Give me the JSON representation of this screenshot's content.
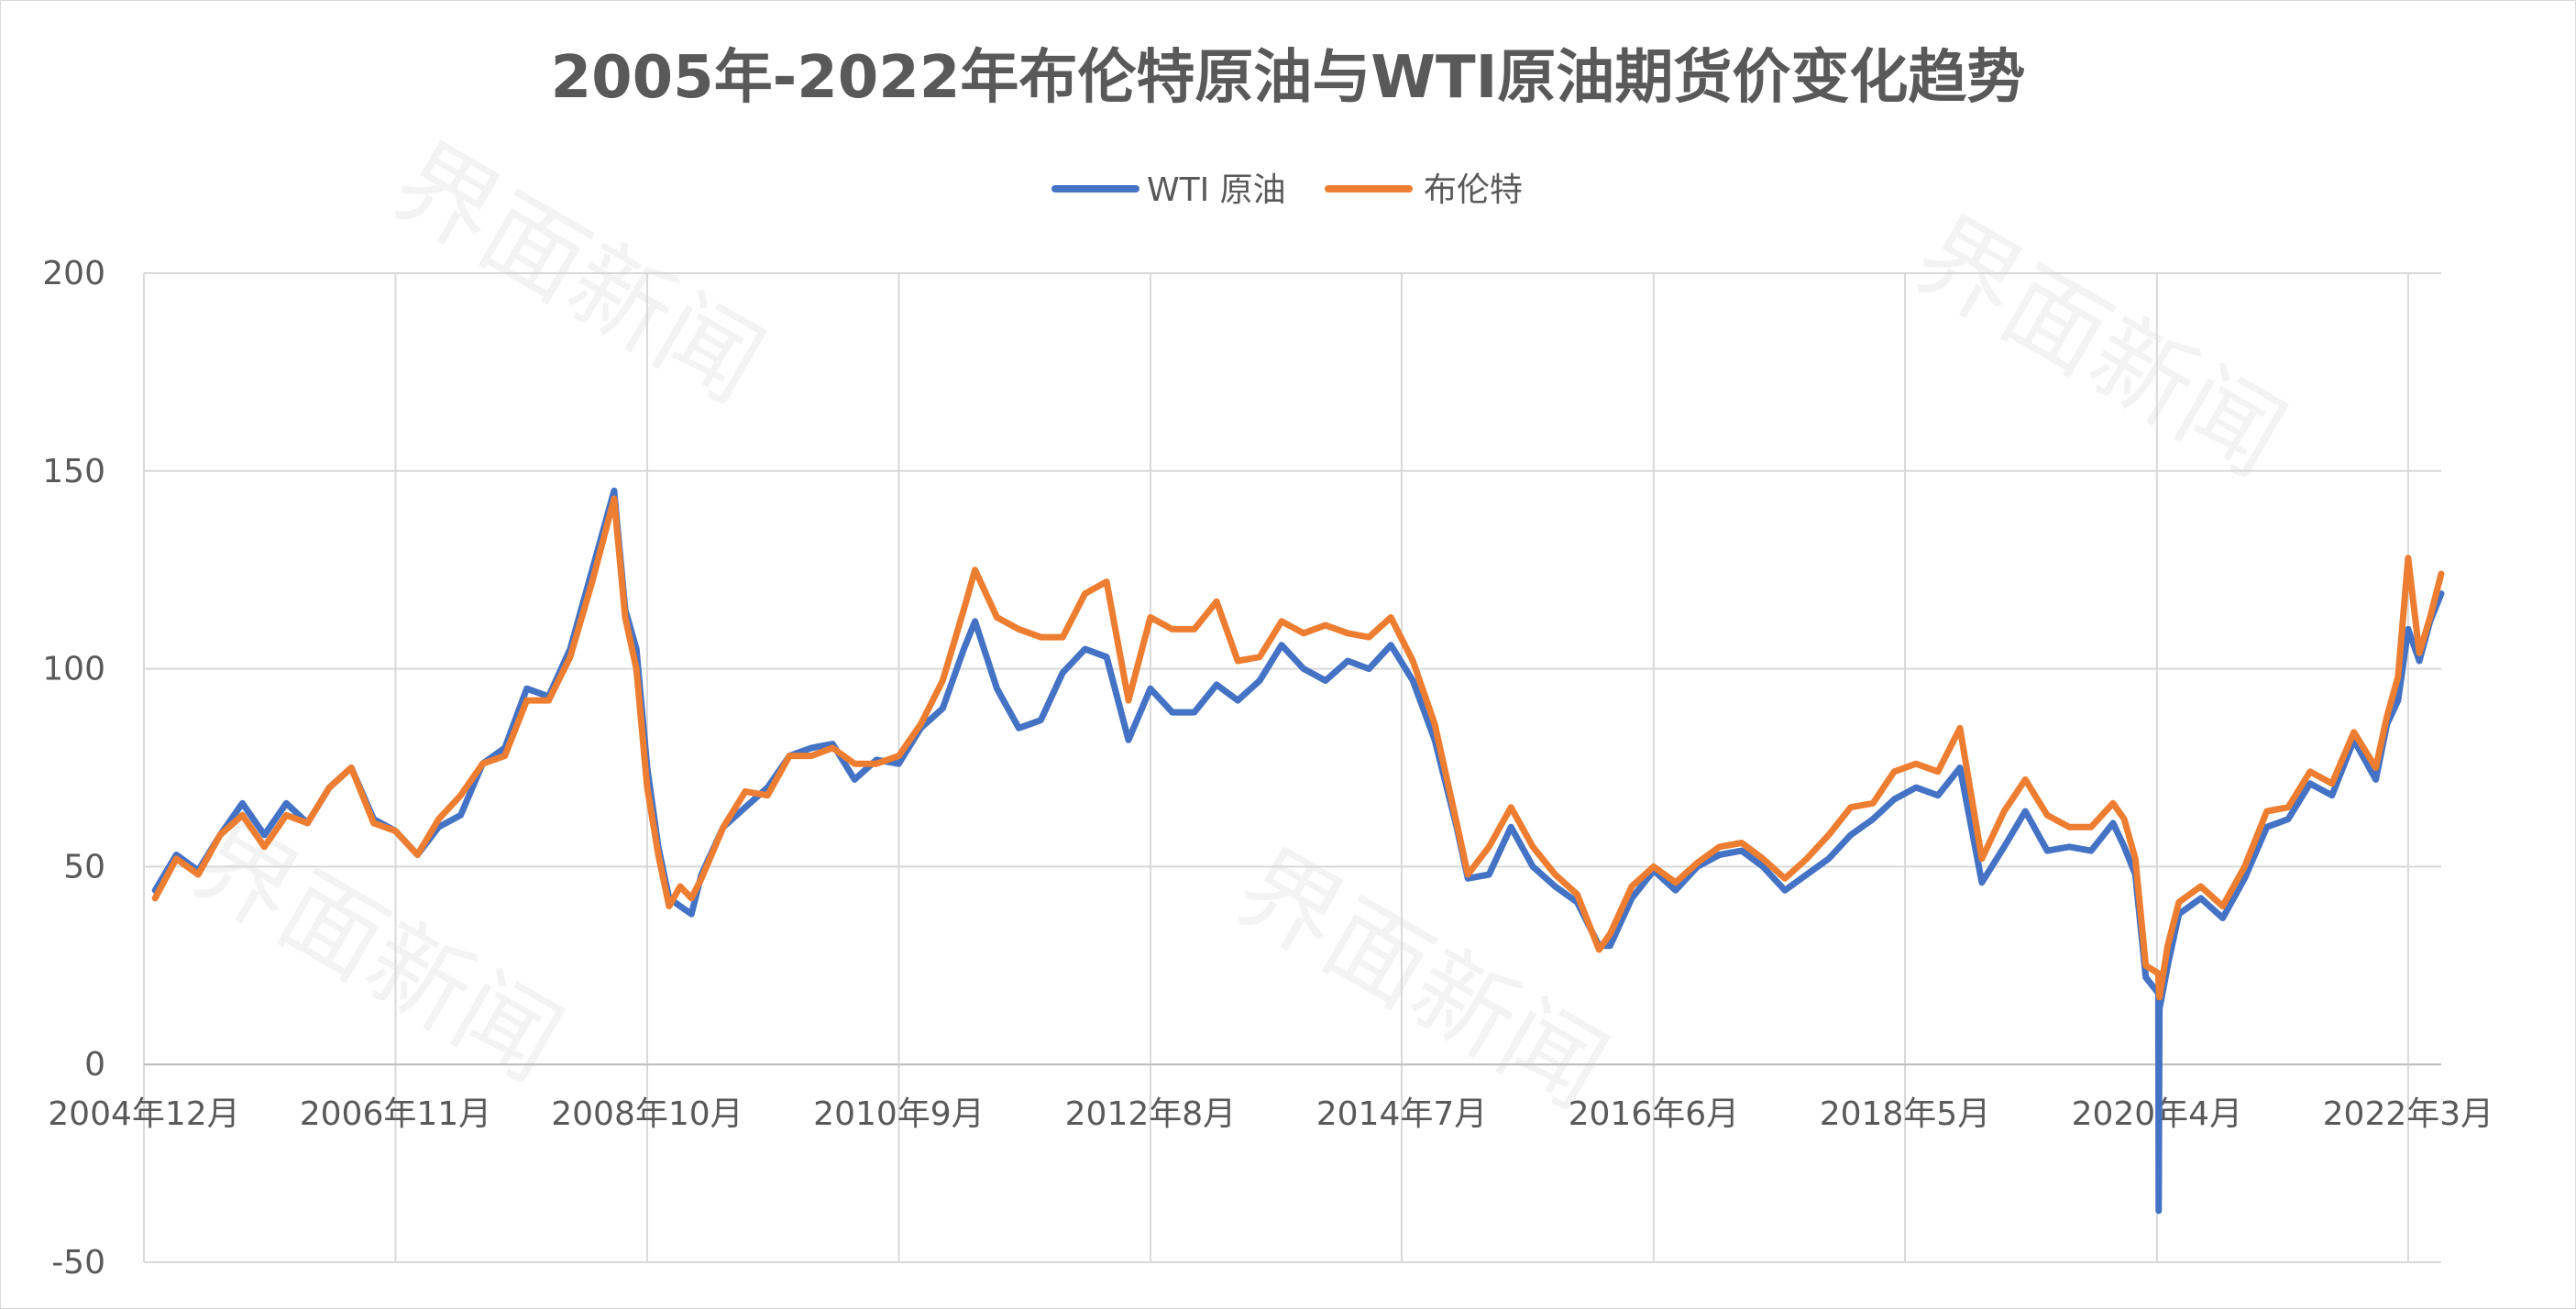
{
  "chart_data": {
    "type": "line",
    "title": "2005年-2022年布伦特原油与WTI原油期货价变化趋势",
    "xlabel": "",
    "ylabel": "",
    "x_range": [
      "2004-12",
      "2022-06"
    ],
    "ylim": [
      -50,
      200
    ],
    "y_ticks": [
      -50,
      0,
      50,
      100,
      150,
      200
    ],
    "x_ticks": [
      {
        "date": "2004-12",
        "label": "2004年12月"
      },
      {
        "date": "2006-11",
        "label": "2006年11月"
      },
      {
        "date": "2008-10",
        "label": "2008年10月"
      },
      {
        "date": "2010-09",
        "label": "2010年9月"
      },
      {
        "date": "2012-08",
        "label": "2012年8月"
      },
      {
        "date": "2014-07",
        "label": "2014年7月"
      },
      {
        "date": "2016-06",
        "label": "2016年6月"
      },
      {
        "date": "2018-05",
        "label": "2018年5月"
      },
      {
        "date": "2020-04",
        "label": "2020年4月"
      },
      {
        "date": "2022-03",
        "label": "2022年3月"
      }
    ],
    "grid": true,
    "legend_position": "top-center",
    "series": [
      {
        "name": "WTI 原油",
        "color": "#4472C4",
        "points": [
          [
            "2005-01",
            44
          ],
          [
            "2005-03",
            53
          ],
          [
            "2005-05",
            49
          ],
          [
            "2005-07",
            58
          ],
          [
            "2005-09",
            66
          ],
          [
            "2005-11",
            58
          ],
          [
            "2006-01",
            66
          ],
          [
            "2006-03",
            61
          ],
          [
            "2006-05",
            70
          ],
          [
            "2006-07",
            75
          ],
          [
            "2006-09",
            62
          ],
          [
            "2006-11",
            59
          ],
          [
            "2007-01",
            53
          ],
          [
            "2007-03",
            60
          ],
          [
            "2007-05",
            63
          ],
          [
            "2007-07",
            76
          ],
          [
            "2007-09",
            80
          ],
          [
            "2007-11",
            95
          ],
          [
            "2008-01",
            93
          ],
          [
            "2008-03",
            105
          ],
          [
            "2008-05",
            125
          ],
          [
            "2008-07",
            145
          ],
          [
            "2008-08",
            115
          ],
          [
            "2008-09",
            105
          ],
          [
            "2008-10",
            75
          ],
          [
            "2008-11",
            55
          ],
          [
            "2008-12",
            42
          ],
          [
            "2009-01",
            40
          ],
          [
            "2009-02",
            38
          ],
          [
            "2009-03",
            48
          ],
          [
            "2009-05",
            60
          ],
          [
            "2009-07",
            65
          ],
          [
            "2009-09",
            70
          ],
          [
            "2009-11",
            78
          ],
          [
            "2010-01",
            80
          ],
          [
            "2010-03",
            81
          ],
          [
            "2010-05",
            72
          ],
          [
            "2010-07",
            77
          ],
          [
            "2010-09",
            76
          ],
          [
            "2010-11",
            85
          ],
          [
            "2011-01",
            90
          ],
          [
            "2011-03",
            105
          ],
          [
            "2011-04",
            112
          ],
          [
            "2011-06",
            95
          ],
          [
            "2011-08",
            85
          ],
          [
            "2011-10",
            87
          ],
          [
            "2011-12",
            99
          ],
          [
            "2012-02",
            105
          ],
          [
            "2012-04",
            103
          ],
          [
            "2012-06",
            82
          ],
          [
            "2012-08",
            95
          ],
          [
            "2012-10",
            89
          ],
          [
            "2012-12",
            89
          ],
          [
            "2013-02",
            96
          ],
          [
            "2013-04",
            92
          ],
          [
            "2013-06",
            97
          ],
          [
            "2013-08",
            106
          ],
          [
            "2013-10",
            100
          ],
          [
            "2013-12",
            97
          ],
          [
            "2014-02",
            102
          ],
          [
            "2014-04",
            100
          ],
          [
            "2014-06",
            106
          ],
          [
            "2014-08",
            97
          ],
          [
            "2014-10",
            82
          ],
          [
            "2014-12",
            60
          ],
          [
            "2015-01",
            47
          ],
          [
            "2015-03",
            48
          ],
          [
            "2015-05",
            60
          ],
          [
            "2015-07",
            50
          ],
          [
            "2015-09",
            45
          ],
          [
            "2015-11",
            41
          ],
          [
            "2016-01",
            30
          ],
          [
            "2016-02",
            30
          ],
          [
            "2016-04",
            42
          ],
          [
            "2016-06",
            49
          ],
          [
            "2016-08",
            44
          ],
          [
            "2016-10",
            50
          ],
          [
            "2016-12",
            53
          ],
          [
            "2017-02",
            54
          ],
          [
            "2017-04",
            50
          ],
          [
            "2017-06",
            44
          ],
          [
            "2017-08",
            48
          ],
          [
            "2017-10",
            52
          ],
          [
            "2017-12",
            58
          ],
          [
            "2018-02",
            62
          ],
          [
            "2018-04",
            67
          ],
          [
            "2018-06",
            70
          ],
          [
            "2018-08",
            68
          ],
          [
            "2018-10",
            75
          ],
          [
            "2018-12",
            46
          ],
          [
            "2019-02",
            55
          ],
          [
            "2019-04",
            64
          ],
          [
            "2019-06",
            54
          ],
          [
            "2019-08",
            55
          ],
          [
            "2019-10",
            54
          ],
          [
            "2019-12",
            61
          ],
          [
            "2020-01",
            55
          ],
          [
            "2020-02",
            48
          ],
          [
            "2020-03",
            22
          ],
          [
            "2020-04-19",
            18
          ],
          [
            "2020-04-20",
            -37
          ],
          [
            "2020-04-22",
            14
          ],
          [
            "2020-05",
            25
          ],
          [
            "2020-06",
            38
          ],
          [
            "2020-08",
            42
          ],
          [
            "2020-10",
            37
          ],
          [
            "2020-12",
            47
          ],
          [
            "2021-02",
            60
          ],
          [
            "2021-04",
            62
          ],
          [
            "2021-06",
            71
          ],
          [
            "2021-08",
            68
          ],
          [
            "2021-10",
            82
          ],
          [
            "2021-12",
            72
          ],
          [
            "2022-01",
            86
          ],
          [
            "2022-02",
            92
          ],
          [
            "2022-03",
            110
          ],
          [
            "2022-04",
            102
          ],
          [
            "2022-05",
            112
          ],
          [
            "2022-06",
            119
          ]
        ]
      },
      {
        "name": "布伦特",
        "color": "#ED7D31",
        "points": [
          [
            "2005-01",
            42
          ],
          [
            "2005-03",
            52
          ],
          [
            "2005-05",
            48
          ],
          [
            "2005-07",
            58
          ],
          [
            "2005-09",
            63
          ],
          [
            "2005-11",
            55
          ],
          [
            "2006-01",
            63
          ],
          [
            "2006-03",
            61
          ],
          [
            "2006-05",
            70
          ],
          [
            "2006-07",
            75
          ],
          [
            "2006-09",
            61
          ],
          [
            "2006-11",
            59
          ],
          [
            "2007-01",
            53
          ],
          [
            "2007-03",
            62
          ],
          [
            "2007-05",
            68
          ],
          [
            "2007-07",
            76
          ],
          [
            "2007-09",
            78
          ],
          [
            "2007-11",
            92
          ],
          [
            "2008-01",
            92
          ],
          [
            "2008-03",
            103
          ],
          [
            "2008-05",
            122
          ],
          [
            "2008-07",
            143
          ],
          [
            "2008-08",
            113
          ],
          [
            "2008-09",
            100
          ],
          [
            "2008-10",
            70
          ],
          [
            "2008-11",
            53
          ],
          [
            "2008-12",
            40
          ],
          [
            "2009-01",
            45
          ],
          [
            "2009-02",
            42
          ],
          [
            "2009-03",
            47
          ],
          [
            "2009-05",
            60
          ],
          [
            "2009-07",
            69
          ],
          [
            "2009-09",
            68
          ],
          [
            "2009-11",
            78
          ],
          [
            "2010-01",
            78
          ],
          [
            "2010-03",
            80
          ],
          [
            "2010-05",
            76
          ],
          [
            "2010-07",
            76
          ],
          [
            "2010-09",
            78
          ],
          [
            "2010-11",
            86
          ],
          [
            "2011-01",
            97
          ],
          [
            "2011-03",
            115
          ],
          [
            "2011-04",
            125
          ],
          [
            "2011-06",
            113
          ],
          [
            "2011-08",
            110
          ],
          [
            "2011-10",
            108
          ],
          [
            "2011-12",
            108
          ],
          [
            "2012-02",
            119
          ],
          [
            "2012-04",
            122
          ],
          [
            "2012-06",
            92
          ],
          [
            "2012-08",
            113
          ],
          [
            "2012-10",
            110
          ],
          [
            "2012-12",
            110
          ],
          [
            "2013-02",
            117
          ],
          [
            "2013-04",
            102
          ],
          [
            "2013-06",
            103
          ],
          [
            "2013-08",
            112
          ],
          [
            "2013-10",
            109
          ],
          [
            "2013-12",
            111
          ],
          [
            "2014-02",
            109
          ],
          [
            "2014-04",
            108
          ],
          [
            "2014-06",
            113
          ],
          [
            "2014-08",
            102
          ],
          [
            "2014-10",
            86
          ],
          [
            "2014-12",
            61
          ],
          [
            "2015-01",
            48
          ],
          [
            "2015-03",
            55
          ],
          [
            "2015-05",
            65
          ],
          [
            "2015-07",
            55
          ],
          [
            "2015-09",
            48
          ],
          [
            "2015-11",
            43
          ],
          [
            "2016-01",
            29
          ],
          [
            "2016-02",
            33
          ],
          [
            "2016-04",
            45
          ],
          [
            "2016-06",
            50
          ],
          [
            "2016-08",
            46
          ],
          [
            "2016-10",
            51
          ],
          [
            "2016-12",
            55
          ],
          [
            "2017-02",
            56
          ],
          [
            "2017-04",
            52
          ],
          [
            "2017-06",
            47
          ],
          [
            "2017-08",
            52
          ],
          [
            "2017-10",
            58
          ],
          [
            "2017-12",
            65
          ],
          [
            "2018-02",
            66
          ],
          [
            "2018-04",
            74
          ],
          [
            "2018-06",
            76
          ],
          [
            "2018-08",
            74
          ],
          [
            "2018-10",
            85
          ],
          [
            "2018-12",
            52
          ],
          [
            "2019-02",
            64
          ],
          [
            "2019-04",
            72
          ],
          [
            "2019-06",
            63
          ],
          [
            "2019-08",
            60
          ],
          [
            "2019-10",
            60
          ],
          [
            "2019-12",
            66
          ],
          [
            "2020-01",
            62
          ],
          [
            "2020-02",
            52
          ],
          [
            "2020-03",
            25
          ],
          [
            "2020-04-19",
            23
          ],
          [
            "2020-04-20",
            20
          ],
          [
            "2020-04-22",
            17
          ],
          [
            "2020-05",
            30
          ],
          [
            "2020-06",
            41
          ],
          [
            "2020-08",
            45
          ],
          [
            "2020-10",
            40
          ],
          [
            "2020-12",
            50
          ],
          [
            "2021-02",
            64
          ],
          [
            "2021-04",
            65
          ],
          [
            "2021-06",
            74
          ],
          [
            "2021-08",
            71
          ],
          [
            "2021-10",
            84
          ],
          [
            "2021-12",
            75
          ],
          [
            "2022-01",
            88
          ],
          [
            "2022-02",
            98
          ],
          [
            "2022-03",
            128
          ],
          [
            "2022-04",
            104
          ],
          [
            "2022-05",
            113
          ],
          [
            "2022-06",
            124
          ]
        ]
      }
    ]
  },
  "watermark": "界面新闻"
}
